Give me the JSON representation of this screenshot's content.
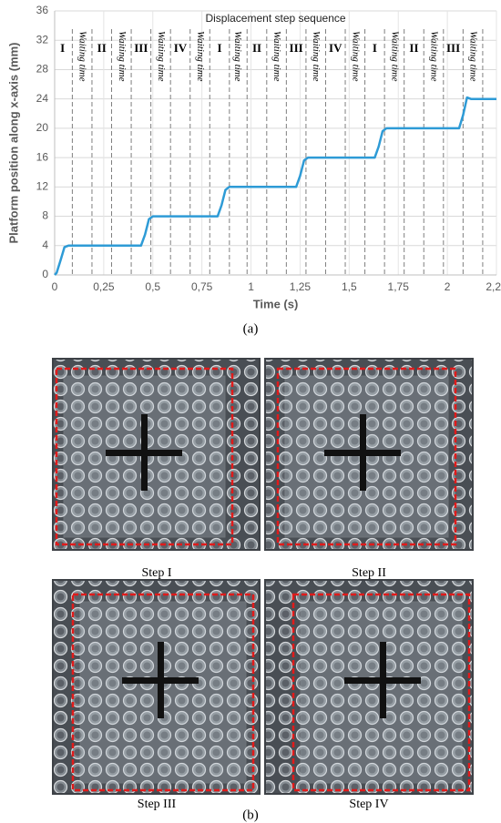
{
  "chart_data": {
    "type": "line",
    "title": "Displacement step sequence",
    "x_label": "Time (s)",
    "y_label": "Platform position along x-axis (mm)",
    "xlim": [
      0,
      2.25
    ],
    "ylim": [
      0,
      36
    ],
    "xticks": [
      0,
      {
        "value": 0.25,
        "label": "0,25"
      },
      {
        "value": 0.5,
        "label": "0,5"
      },
      {
        "value": 0.75,
        "label": "0,75"
      },
      1,
      {
        "value": 1.25,
        "label": "1,25"
      },
      {
        "value": 1.5,
        "label": "1,5"
      },
      {
        "value": 1.75,
        "label": "1,75"
      },
      2,
      {
        "value": 2.25,
        "label": "2,25"
      }
    ],
    "yticks": [
      0,
      4,
      8,
      12,
      16,
      20,
      24,
      28,
      32,
      36
    ],
    "grid": true,
    "series": [
      {
        "color": "#2e9bd6",
        "x": [
          0,
          0.01,
          0.03,
          0.05,
          0.07,
          0.44,
          0.46,
          0.48,
          0.5,
          0.83,
          0.85,
          0.87,
          0.89,
          1.23,
          1.25,
          1.27,
          1.29,
          1.63,
          1.65,
          1.67,
          1.69,
          2.06,
          2.08,
          2.1,
          2.12,
          2.25
        ],
        "values": [
          0,
          0.3,
          2.0,
          3.8,
          4,
          4,
          5.5,
          7.6,
          8,
          8,
          9.5,
          11.6,
          12,
          12,
          13.5,
          15.6,
          16,
          16,
          17.5,
          19.6,
          20,
          20,
          21.8,
          24.2,
          24,
          24
        ]
      }
    ],
    "vlines": [
      0.09,
      0.19,
      0.29,
      0.39,
      0.49,
      0.59,
      0.69,
      0.79,
      0.89,
      0.98,
      1.08,
      1.18,
      1.28,
      1.38,
      1.48,
      1.58,
      1.68,
      1.78,
      1.88,
      1.98,
      2.08,
      2.18
    ],
    "annotations": [
      {
        "text": "I",
        "x": 0.04
      },
      {
        "text": "Waiting time",
        "x": 0.14
      },
      {
        "text": "II",
        "x": 0.24
      },
      {
        "text": "Waiting time",
        "x": 0.34
      },
      {
        "text": "III",
        "x": 0.44
      },
      {
        "text": "Waiting time",
        "x": 0.54
      },
      {
        "text": "IV",
        "x": 0.64
      },
      {
        "text": "Waiting time",
        "x": 0.74
      },
      {
        "text": "I",
        "x": 0.84
      },
      {
        "text": "Waiting time",
        "x": 0.93
      },
      {
        "text": "II",
        "x": 1.03
      },
      {
        "text": "Waiting time",
        "x": 1.13
      },
      {
        "text": "III",
        "x": 1.23
      },
      {
        "text": "Waiting time",
        "x": 1.33
      },
      {
        "text": "IV",
        "x": 1.43
      },
      {
        "text": "Waiting time",
        "x": 1.53
      },
      {
        "text": "I",
        "x": 1.63
      },
      {
        "text": "Waiting time",
        "x": 1.73
      },
      {
        "text": "II",
        "x": 1.83
      },
      {
        "text": "Waiting time",
        "x": 1.93
      },
      {
        "text": "III",
        "x": 2.03
      },
      {
        "text": "Waiting time",
        "x": 2.13
      }
    ]
  },
  "figure": {
    "label_a": "(a)",
    "label_b": "(b)",
    "captions": [
      "Step I",
      "Step II",
      "Step III",
      "Step IV"
    ]
  }
}
